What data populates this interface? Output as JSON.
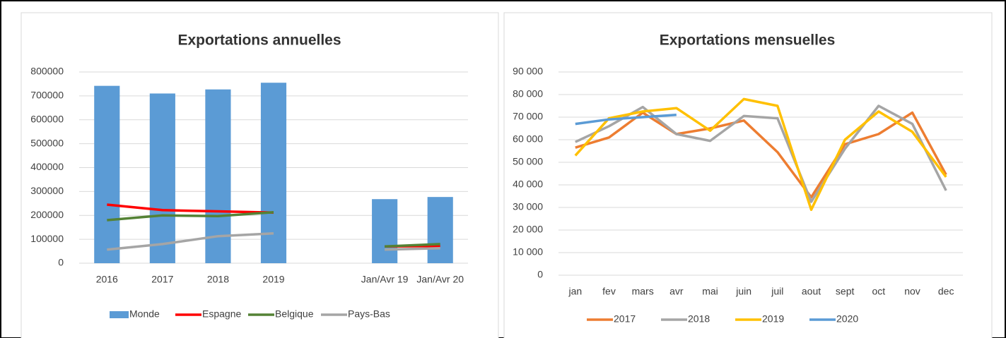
{
  "chart_data": [
    {
      "type": "combo",
      "title": "Exportations annuelles",
      "categories": [
        "2016",
        "2017",
        "2018",
        "2019",
        null,
        "Jan/Avr 19",
        "Jan/Avr 20"
      ],
      "ylim": [
        0,
        800000
      ],
      "yticks": [
        0,
        100000,
        200000,
        300000,
        400000,
        500000,
        600000,
        700000,
        800000
      ],
      "grid": true,
      "legend": "bottom",
      "series": [
        {
          "name": "Monde",
          "type": "bar",
          "color": "#5b9bd5",
          "values": [
            742000,
            710000,
            727000,
            755000,
            null,
            268000,
            277000
          ]
        },
        {
          "name": "Espagne",
          "type": "line",
          "color": "#ff0000",
          "values": [
            245000,
            222000,
            217000,
            212000,
            null,
            70000,
            72000
          ]
        },
        {
          "name": "Belgique",
          "type": "line",
          "color": "#548235",
          "values": [
            180000,
            200000,
            197000,
            213000,
            null,
            70000,
            80000
          ]
        },
        {
          "name": "Pays-Bas",
          "type": "line",
          "color": "#a5a5a5",
          "values": [
            57000,
            80000,
            113000,
            125000,
            null,
            57000,
            63000
          ]
        }
      ]
    },
    {
      "type": "line",
      "title": "Exportations mensuelles",
      "categories": [
        "jan",
        "fev",
        "mars",
        "avr",
        "mai",
        "juin",
        "juil",
        "aout",
        "sept",
        "oct",
        "nov",
        "dec"
      ],
      "ylim": [
        0,
        90000
      ],
      "yticks": [
        0,
        {
          "value": 10000,
          "label": "10 000"
        },
        {
          "value": 20000,
          "label": "20 000"
        },
        {
          "value": 30000,
          "label": "30 000"
        },
        {
          "value": 40000,
          "label": "40 000"
        },
        {
          "value": 50000,
          "label": "50 000"
        },
        {
          "value": 60000,
          "label": "60 000"
        },
        {
          "value": 70000,
          "label": "70 000"
        },
        {
          "value": 80000,
          "label": "80 000"
        },
        {
          "value": 90000,
          "label": "90 000"
        }
      ],
      "grid": true,
      "legend": "bottom",
      "series": [
        {
          "name": "2017",
          "color": "#ed7d31",
          "values": [
            56500,
            61000,
            72000,
            62500,
            65000,
            68500,
            54500,
            34500,
            58000,
            62500,
            72000,
            44500
          ]
        },
        {
          "name": "2018",
          "color": "#a5a5a5",
          "values": [
            59000,
            66000,
            74500,
            62500,
            59500,
            70500,
            69500,
            32500,
            56000,
            75000,
            67000,
            37500
          ]
        },
        {
          "name": "2019",
          "color": "#ffc000",
          "values": [
            53000,
            69500,
            72500,
            74000,
            64000,
            78000,
            75000,
            29000,
            60000,
            72500,
            63500,
            43500
          ]
        },
        {
          "name": "2020",
          "color": "#5b9bd5",
          "values": [
            67000,
            69000,
            70000,
            71000,
            null,
            null,
            null,
            null,
            null,
            null,
            null,
            null
          ]
        }
      ]
    }
  ]
}
